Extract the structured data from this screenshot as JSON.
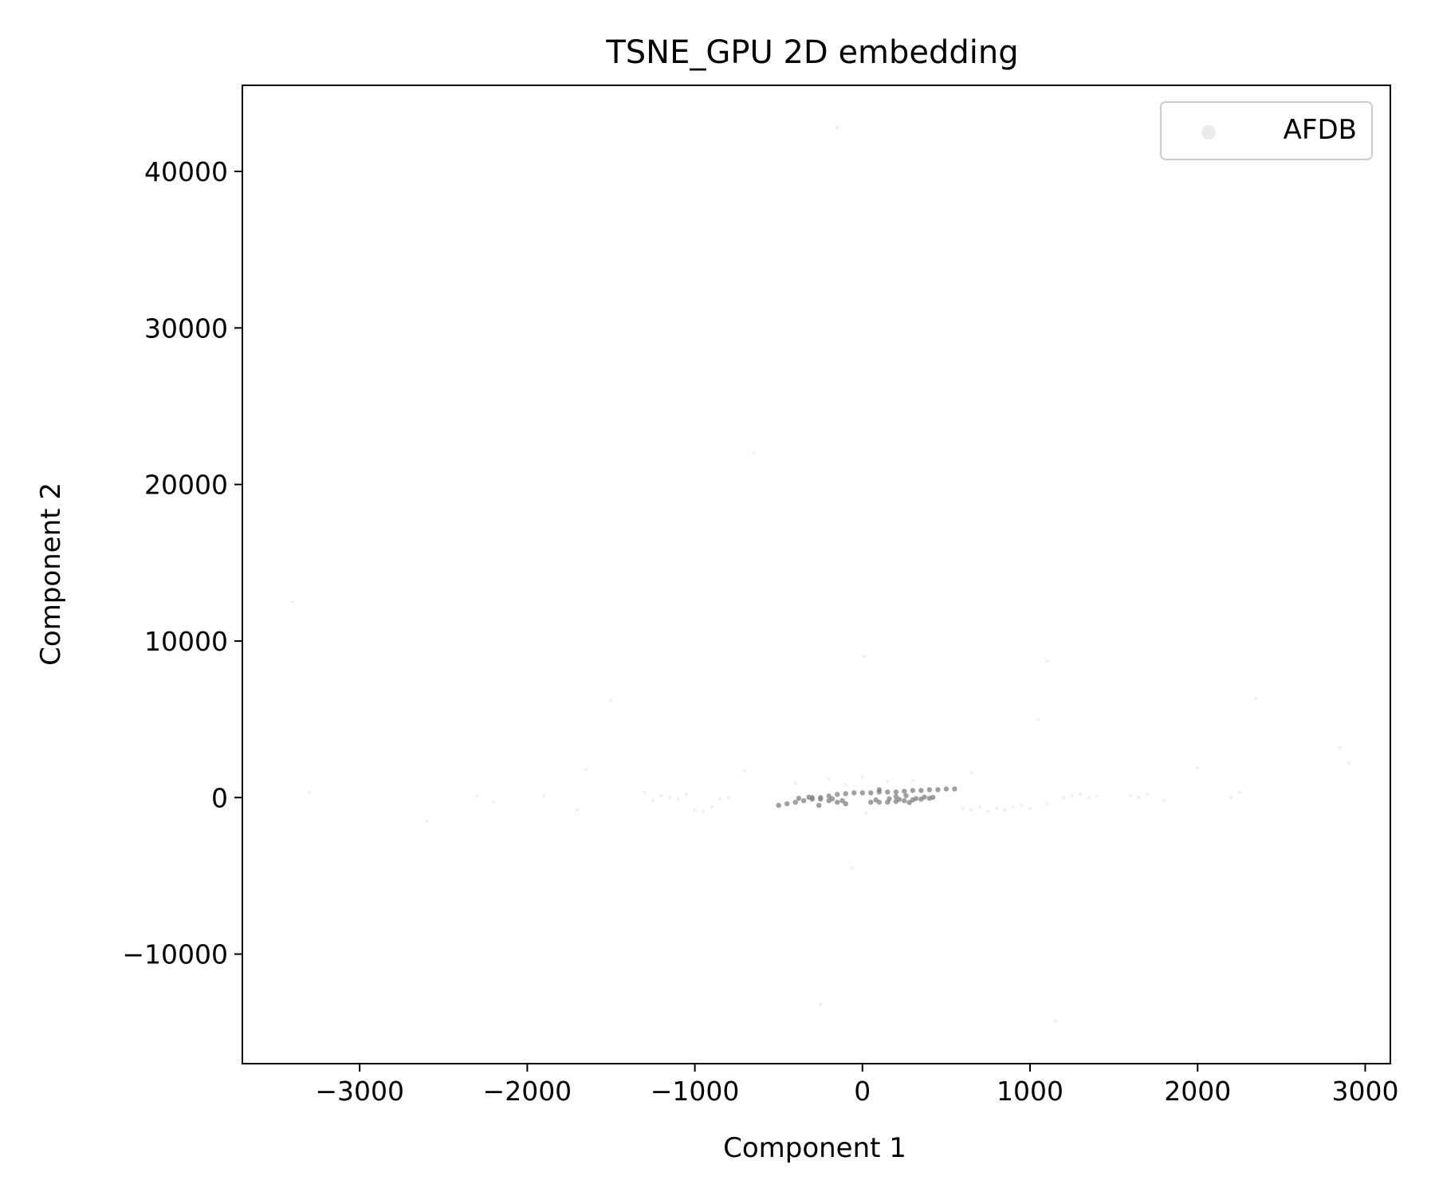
{
  "chart_data": {
    "type": "scatter",
    "title": "TSNE_GPU 2D embedding",
    "xlabel": "Component 1",
    "ylabel": "Component 2",
    "xlim": [
      -3700,
      3150
    ],
    "ylim": [
      -17000,
      45500
    ],
    "xticks": [
      -3000,
      -2000,
      -1000,
      0,
      1000,
      2000,
      3000
    ],
    "xtick_labels": [
      "−3000",
      "−2000",
      "−1000",
      "0",
      "1000",
      "2000",
      "3000"
    ],
    "yticks": [
      -10000,
      0,
      10000,
      20000,
      30000,
      40000
    ],
    "ytick_labels": [
      "−10000",
      "0",
      "10000",
      "20000",
      "30000",
      "40000"
    ],
    "grid": false,
    "legend": {
      "placement": "top-right",
      "entries": [
        "AFDB"
      ]
    },
    "series": [
      {
        "name": "AFDB",
        "color": "#808080",
        "points": [
          [
            -3400,
            12500
          ],
          [
            -3300,
            300
          ],
          [
            -2600,
            -1500
          ],
          [
            -2300,
            100
          ],
          [
            -2200,
            -300
          ],
          [
            -1900,
            100
          ],
          [
            -1700,
            -800
          ],
          [
            -1650,
            1800
          ],
          [
            -1500,
            6200
          ],
          [
            -1300,
            300
          ],
          [
            -1250,
            -200
          ],
          [
            -1200,
            100
          ],
          [
            -1150,
            0
          ],
          [
            -1100,
            -100
          ],
          [
            -1050,
            200
          ],
          [
            -1000,
            -800
          ],
          [
            -950,
            -900
          ],
          [
            -900,
            -600
          ],
          [
            -850,
            -100
          ],
          [
            -800,
            0
          ],
          [
            -700,
            1700
          ],
          [
            -650,
            22000
          ],
          [
            -500,
            -500
          ],
          [
            -450,
            -400
          ],
          [
            -400,
            -300
          ],
          [
            -350,
            -200
          ],
          [
            -300,
            -100
          ],
          [
            -250,
            0
          ],
          [
            -200,
            100
          ],
          [
            -150,
            200
          ],
          [
            -100,
            250
          ],
          [
            -50,
            300
          ],
          [
            0,
            300
          ],
          [
            50,
            300
          ],
          [
            100,
            350
          ],
          [
            150,
            350
          ],
          [
            200,
            350
          ],
          [
            250,
            400
          ],
          [
            300,
            450
          ],
          [
            350,
            450
          ],
          [
            400,
            500
          ],
          [
            450,
            500
          ],
          [
            500,
            550
          ],
          [
            550,
            550
          ],
          [
            -300,
            0
          ],
          [
            -250,
            -100
          ],
          [
            -200,
            -200
          ],
          [
            -150,
            -300
          ],
          [
            -100,
            -400
          ],
          [
            50,
            -300
          ],
          [
            100,
            -300
          ],
          [
            150,
            -300
          ],
          [
            200,
            -250
          ],
          [
            250,
            -200
          ],
          [
            300,
            -150
          ],
          [
            350,
            -100
          ],
          [
            400,
            -50
          ],
          [
            -380,
            -50
          ],
          [
            -320,
            20
          ],
          [
            -260,
            -500
          ],
          [
            -180,
            -80
          ],
          [
            -120,
            -200
          ],
          [
            20,
            -1000
          ],
          [
            80,
            -150
          ],
          [
            160,
            -80
          ],
          [
            220,
            -120
          ],
          [
            280,
            -320
          ],
          [
            320,
            -60
          ],
          [
            370,
            30
          ],
          [
            420,
            10
          ],
          [
            200,
            60
          ],
          [
            260,
            120
          ],
          [
            -60,
            -4500
          ],
          [
            10,
            9000
          ],
          [
            100,
            500
          ],
          [
            300,
            1100
          ],
          [
            -200,
            1200
          ],
          [
            0,
            1300
          ],
          [
            -400,
            900
          ],
          [
            -100,
            800
          ],
          [
            150,
            1000
          ],
          [
            600,
            -700
          ],
          [
            650,
            -800
          ],
          [
            700,
            -600
          ],
          [
            750,
            -900
          ],
          [
            800,
            -700
          ],
          [
            850,
            -800
          ],
          [
            900,
            -600
          ],
          [
            950,
            -500
          ],
          [
            1000,
            -700
          ],
          [
            1100,
            -400
          ],
          [
            1200,
            0
          ],
          [
            1250,
            100
          ],
          [
            1300,
            200
          ],
          [
            1350,
            0
          ],
          [
            1400,
            100
          ],
          [
            1600,
            100
          ],
          [
            1650,
            0
          ],
          [
            1800,
            -200
          ],
          [
            1700,
            200
          ],
          [
            650,
            1600
          ],
          [
            1050,
            5000
          ],
          [
            1100,
            8700
          ],
          [
            1150,
            -14300
          ],
          [
            -250,
            -13200
          ],
          [
            -150,
            42800
          ],
          [
            2000,
            1900
          ],
          [
            2250,
            300
          ],
          [
            2350,
            6300
          ],
          [
            2850,
            3200
          ],
          [
            2900,
            2200
          ],
          [
            2200,
            0
          ]
        ]
      }
    ]
  }
}
